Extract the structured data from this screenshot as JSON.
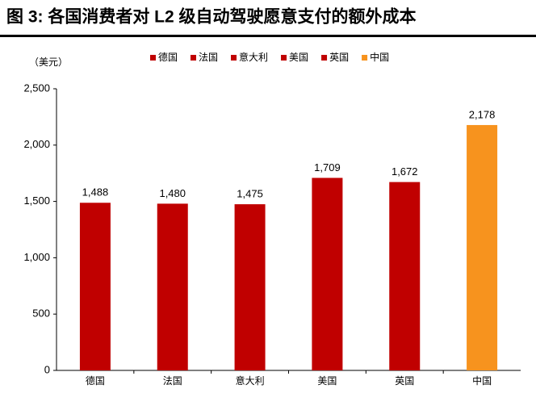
{
  "chart_data": {
    "type": "bar",
    "title": "图 3: 各国消费者对 L2 级自动驾驶愿意支付的额外成本",
    "y_label": "（美元）",
    "categories": [
      "德国",
      "法国",
      "意大利",
      "美国",
      "英国",
      "中国"
    ],
    "values": [
      1488,
      1480,
      1475,
      1709,
      1672,
      2178
    ],
    "value_labels": [
      "1,488",
      "1,480",
      "1,475",
      "1,709",
      "1,672",
      "2,178"
    ],
    "colors": [
      "#c00000",
      "#c00000",
      "#c00000",
      "#c00000",
      "#c00000",
      "#f7931e"
    ],
    "ylim": [
      0,
      2500
    ],
    "yticks": [
      0,
      500,
      {
        "value": 1000,
        "label": "1,000"
      },
      {
        "value": 1500,
        "label": "1,500"
      },
      {
        "value": 2000,
        "label": "2,000"
      },
      {
        "value": 2500,
        "label": "2,500"
      }
    ],
    "grid": false,
    "legend": "top"
  }
}
